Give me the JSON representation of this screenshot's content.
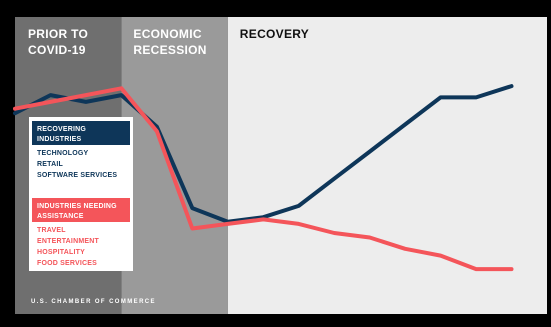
{
  "chart_data": {
    "type": "line",
    "title": "",
    "xlabel": "",
    "ylabel": "",
    "grid": false,
    "phases": [
      {
        "label_lines": [
          "PRIOR TO",
          "COVID-19"
        ],
        "start": 0,
        "end": 3,
        "color": "#6f6f6f"
      },
      {
        "label_lines": [
          "ECONOMIC",
          "RECESSION"
        ],
        "start": 3,
        "end": 6,
        "color": "#9a9a9a"
      },
      {
        "label_lines": [
          "RECOVERY"
        ],
        "start": 6,
        "end": 15,
        "color": "#ededed"
      }
    ],
    "x": [
      0,
      1,
      2,
      3,
      4,
      5,
      6,
      7,
      8,
      9,
      10,
      11,
      12,
      13,
      14,
      15
    ],
    "ylim": [
      0,
      100
    ],
    "series": [
      {
        "key": "recovering",
        "color": "#0e3659",
        "values": [
          80,
          88,
          85,
          88,
          74,
          38,
          32,
          34,
          39,
          51,
          63,
          75,
          87,
          87,
          92,
          null
        ]
      },
      {
        "key": "needing",
        "color": "#f4555a",
        "values": [
          82,
          85,
          88,
          91,
          72,
          29,
          31,
          33,
          31,
          27,
          25,
          20,
          17,
          11,
          11,
          null
        ]
      }
    ],
    "legend": {
      "placement": "left",
      "groups": [
        {
          "header_lines": [
            "RECOVERING",
            "INDUSTRIES"
          ],
          "header_bg": "#0e3659",
          "text_color": "#0e3659",
          "items": [
            "TECHNOLOGY",
            "RETAIL",
            "SOFTWARE SERVICES"
          ]
        },
        {
          "header_lines": [
            "INDUSTRIES NEEDING",
            "ASSISTANCE"
          ],
          "header_bg": "#f4555a",
          "text_color": "#f4555a",
          "items": [
            "TRAVEL",
            "ENTERTAINMENT",
            "HOSPITALITY",
            "FOOD SERVICES"
          ]
        }
      ]
    },
    "source": "U.S. CHAMBER OF COMMERCE"
  }
}
